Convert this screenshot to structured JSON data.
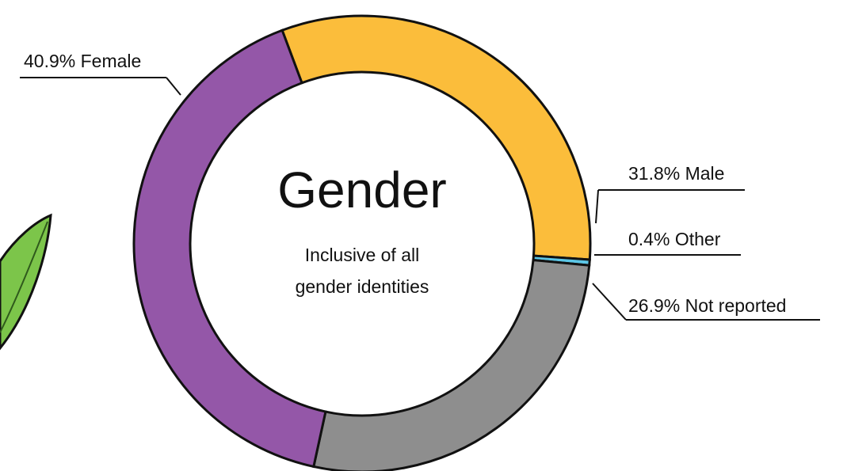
{
  "chart_data": {
    "type": "donut",
    "title": "Gender",
    "subtitle": [
      "Inclusive of all",
      "gender identities"
    ],
    "categories": [
      "Male",
      "Other",
      "Not reported",
      "Female"
    ],
    "values": [
      31.8,
      0.4,
      26.9,
      40.9
    ],
    "value_labels": [
      "31.8%",
      "0.4%",
      "26.9%",
      "40.9%"
    ],
    "colors": [
      "#fbbd3b",
      "#5cc6e6",
      "#8e8e8e",
      "#9457a8"
    ]
  }
}
